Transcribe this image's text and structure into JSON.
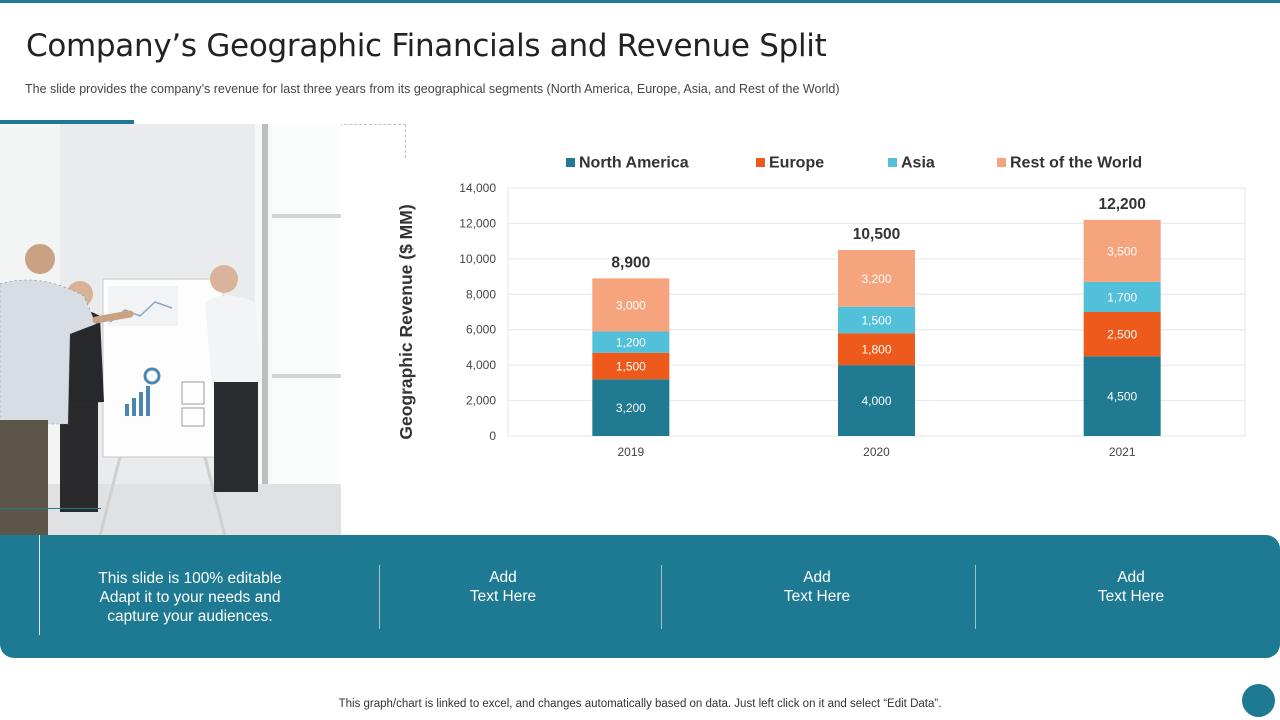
{
  "slide": {
    "title": "Company’s Geographic Financials and Revenue Split",
    "subtitle": "The slide provides  the company’s revenue  for last three years from  its geographical  segments (North  America, Europe,  Asia, and Rest of the World)",
    "footnote": "This graph/chart is linked to excel,  and changes automatically based on data. Just left click on it and select “Edit Data”."
  },
  "colors": {
    "accent": "#1e7a92",
    "north_america": "#1f7a92",
    "europe": "#ee5a1b",
    "asia": "#52c0d9",
    "rest_of_world": "#f6a47d"
  },
  "chart_data": {
    "type": "bar",
    "stacked": true,
    "categories": [
      "2019",
      "2020",
      "2021"
    ],
    "series": [
      {
        "name": "North America",
        "values": [
          3200,
          4000,
          4500
        ]
      },
      {
        "name": "Europe",
        "values": [
          1500,
          1800,
          2500
        ]
      },
      {
        "name": "Asia",
        "values": [
          1200,
          1500,
          1700
        ]
      },
      {
        "name": "Rest of the World",
        "values": [
          3000,
          3200,
          3500
        ]
      }
    ],
    "series_labels": [
      [
        "3,200",
        "4,000",
        "4,500"
      ],
      [
        "1,500",
        "1,800",
        "2,500"
      ],
      [
        "1,200",
        "1,500",
        "1,700"
      ],
      [
        "3,000",
        "3,200",
        "3,500"
      ]
    ],
    "totals": [
      8900,
      10500,
      12200
    ],
    "total_labels": [
      "8,900",
      "10,500",
      "12,200"
    ],
    "ylabel": "Geographic Revenue ($ MM)",
    "ylim": [
      0,
      14000
    ],
    "yticks": [
      0,
      2000,
      4000,
      6000,
      8000,
      10000,
      12000,
      14000
    ],
    "ytick_labels": [
      "0",
      "2,000",
      "4,000",
      "6,000",
      "8,000",
      "10,000",
      "12,000",
      "14,000"
    ],
    "grid": true,
    "legend_position": "top"
  },
  "band": {
    "lead": [
      "This slide is 100% editable",
      "Adapt it to your needs and",
      "capture your audiences."
    ],
    "items": [
      {
        "line1": "Add",
        "line2": "Text Here"
      },
      {
        "line1": "Add",
        "line2": "Text Here"
      },
      {
        "line1": "Add",
        "line2": "Text Here"
      }
    ]
  }
}
